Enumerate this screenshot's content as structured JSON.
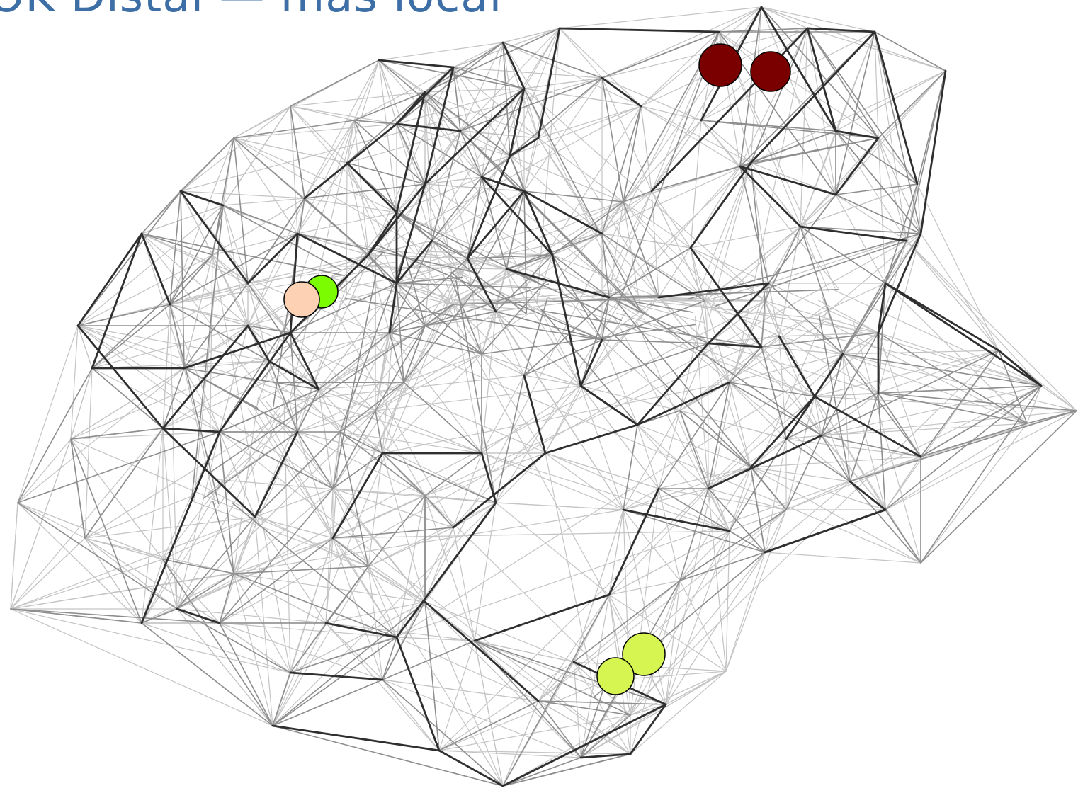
{
  "title": "OK Distal — mas local",
  "colors": {
    "title": "#3d6fa6",
    "edge_light": "#c4c4c4",
    "edge_mid": "#8e8e8e",
    "edge_dark": "#2f2f2f",
    "node_stroke": "#000000"
  },
  "highlighted_nodes": [
    {
      "id": "dark-red-1",
      "color": "#7a0000"
    },
    {
      "id": "dark-red-2",
      "color": "#7a0000"
    },
    {
      "id": "green",
      "color": "#7cfc00"
    },
    {
      "id": "peach",
      "color": "#fdd2b4"
    },
    {
      "id": "yellow-green-1",
      "color": "#d7f550"
    },
    {
      "id": "yellow-green-2",
      "color": "#d7f550"
    }
  ]
}
